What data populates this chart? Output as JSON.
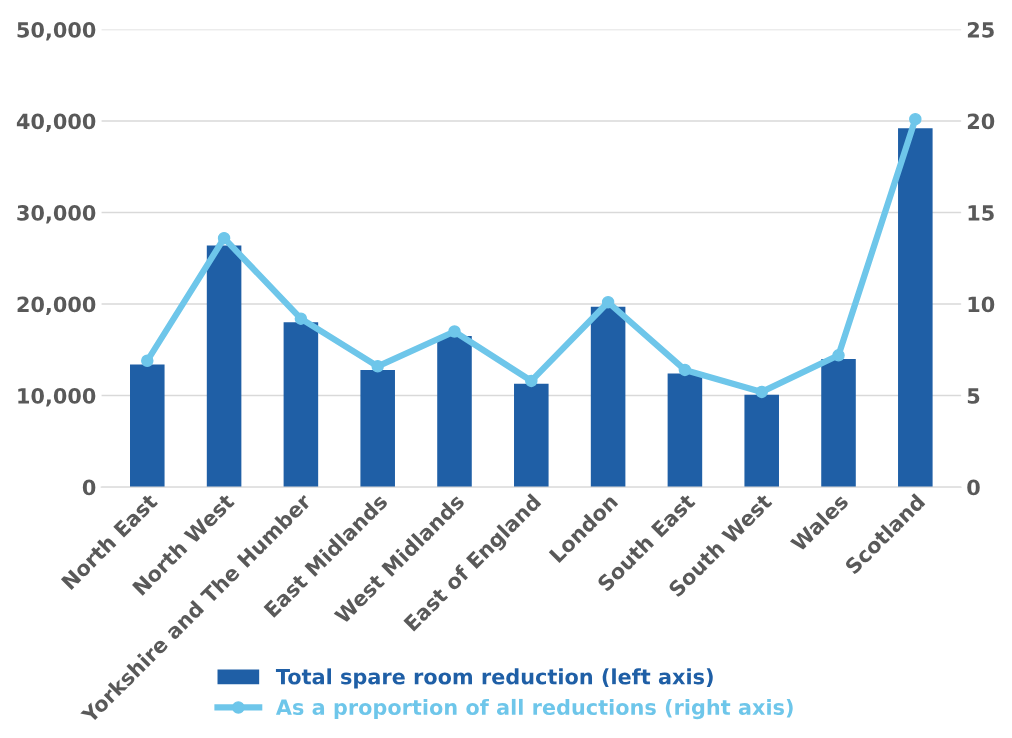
{
  "chart_data": {
    "type": "bar",
    "categories": [
      "North East",
      "North West",
      "Yorkshire and The Humber",
      "East Midlands",
      "West Midlands",
      "East of England",
      "London",
      "South East",
      "South West",
      "Wales",
      "Scotland"
    ],
    "series": [
      {
        "name": "Total spare room reduction (left axis)",
        "color": "#1f5fa6",
        "values": [
          13400,
          26400,
          18000,
          12800,
          16500,
          11300,
          19700,
          12400,
          10100,
          14000,
          39200
        ]
      },
      {
        "name": "As a proportion of all reductions (right axis)",
        "color": "#6ec6ea",
        "type": "line",
        "axis": "y2",
        "marker": "circle",
        "values": [
          6.9,
          13.6,
          9.2,
          6.6,
          8.5,
          5.8,
          10.1,
          6.4,
          5.2,
          7.2,
          20.1
        ]
      }
    ],
    "ylim": [
      0,
      50000
    ],
    "yticks": [
      {
        "value": 0,
        "label": "0"
      },
      {
        "value": 10000,
        "label": "10,000"
      },
      {
        "value": 20000,
        "label": "20,000"
      },
      {
        "value": 30000,
        "label": "30,000"
      },
      {
        "value": 40000,
        "label": "40,000"
      },
      {
        "value": 50000,
        "label": "50,000"
      }
    ],
    "y2lim": [
      0,
      25
    ],
    "y2ticks": [
      0,
      5,
      10,
      15,
      20,
      25
    ],
    "grid": "y",
    "legend": "bottom"
  }
}
